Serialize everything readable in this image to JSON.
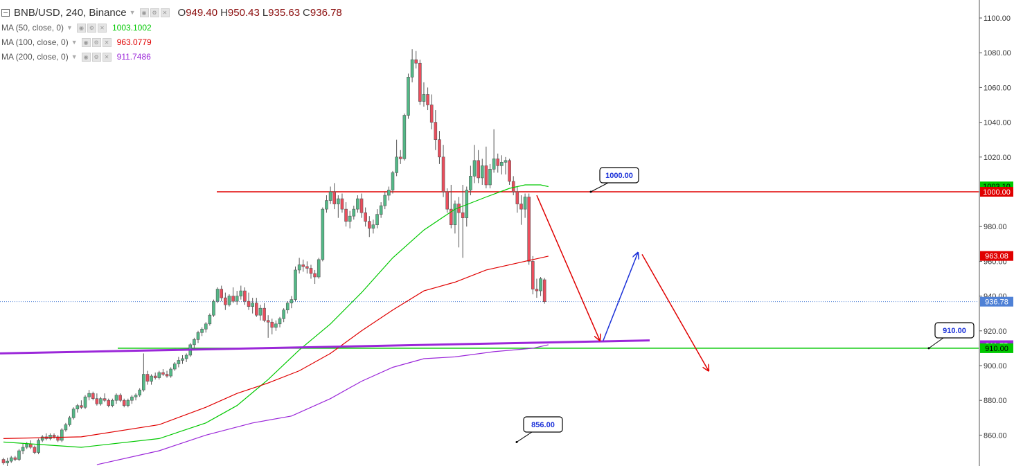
{
  "chart_header": {
    "symbol_line": "BNB/USD, 240, Binance",
    "ohlc": [
      {
        "label": "O",
        "value": "949.40"
      },
      {
        "label": "H",
        "value": "950.43"
      },
      {
        "label": "L",
        "value": "935.63"
      },
      {
        "label": "C",
        "value": "936.78"
      }
    ]
  },
  "indicators": [
    {
      "label": "MA (50, close, 0)",
      "value": "1003.1002",
      "color": "#00c800"
    },
    {
      "label": "MA (100, close, 0)",
      "value": "963.0779",
      "color": "#e00000"
    },
    {
      "label": "MA (200, close, 0)",
      "value": "911.7486",
      "color": "#9b27d9"
    }
  ],
  "chart_data": {
    "type": "candlestick",
    "ylim": [
      841,
      1106
    ],
    "y_ticks": [
      "860.00",
      "880.00",
      "900.00",
      "920.00",
      "940.00",
      "960.00",
      "980.00",
      "1000.00",
      "1020.00",
      "1040.00",
      "1060.00",
      "1080.00",
      "1100.00"
    ],
    "colors": {
      "up": "#53b987",
      "down": "#eb4d5c"
    },
    "candles": [
      [
        846,
        847,
        843,
        844
      ],
      [
        844,
        847,
        842,
        845
      ],
      [
        845,
        848,
        844,
        847
      ],
      [
        847,
        848,
        845,
        846
      ],
      [
        846,
        852,
        845,
        851
      ],
      [
        851,
        855,
        849,
        853
      ],
      [
        853,
        856,
        852,
        855
      ],
      [
        855,
        857,
        852,
        853
      ],
      [
        853,
        854,
        849,
        850
      ],
      [
        850,
        858,
        849,
        857
      ],
      [
        857,
        860,
        856,
        859
      ],
      [
        859,
        861,
        857,
        858
      ],
      [
        858,
        861,
        857,
        860
      ],
      [
        860,
        861,
        858,
        859
      ],
      [
        859,
        860,
        856,
        857
      ],
      [
        857,
        864,
        856,
        863
      ],
      [
        863,
        867,
        862,
        866
      ],
      [
        866,
        871,
        865,
        870
      ],
      [
        870,
        876,
        869,
        875
      ],
      [
        875,
        878,
        873,
        877
      ],
      [
        877,
        880,
        875,
        876
      ],
      [
        876,
        883,
        875,
        882
      ],
      [
        882,
        886,
        880,
        884
      ],
      [
        884,
        885,
        880,
        881
      ],
      [
        881,
        884,
        877,
        878
      ],
      [
        878,
        882,
        877,
        881
      ],
      [
        881,
        884,
        879,
        880
      ],
      [
        880,
        881,
        876,
        877
      ],
      [
        877,
        881,
        876,
        880
      ],
      [
        880,
        884,
        878,
        883
      ],
      [
        883,
        884,
        879,
        880
      ],
      [
        880,
        881,
        876,
        877
      ],
      [
        877,
        881,
        876,
        880
      ],
      [
        880,
        883,
        878,
        882
      ],
      [
        882,
        884,
        880,
        883
      ],
      [
        883,
        887,
        882,
        886
      ],
      [
        886,
        907,
        885,
        895
      ],
      [
        895,
        897,
        889,
        891
      ],
      [
        891,
        895,
        889,
        894
      ],
      [
        894,
        896,
        892,
        893
      ],
      [
        893,
        897,
        892,
        896
      ],
      [
        896,
        898,
        894,
        895
      ],
      [
        895,
        897,
        893,
        894
      ],
      [
        894,
        899,
        893,
        898
      ],
      [
        898,
        902,
        897,
        901
      ],
      [
        901,
        905,
        899,
        903
      ],
      [
        903,
        906,
        901,
        904
      ],
      [
        904,
        907,
        902,
        906
      ],
      [
        906,
        913,
        905,
        912
      ],
      [
        912,
        916,
        910,
        915
      ],
      [
        915,
        920,
        913,
        919
      ],
      [
        919,
        922,
        917,
        921
      ],
      [
        921,
        925,
        919,
        924
      ],
      [
        924,
        930,
        923,
        929
      ],
      [
        929,
        938,
        928,
        937
      ],
      [
        937,
        945,
        936,
        944
      ],
      [
        944,
        946,
        937,
        939
      ],
      [
        939,
        942,
        932,
        935
      ],
      [
        935,
        941,
        934,
        940
      ],
      [
        940,
        945,
        936,
        937
      ],
      [
        937,
        943,
        935,
        940
      ],
      [
        940,
        946,
        938,
        943
      ],
      [
        943,
        945,
        935,
        937
      ],
      [
        937,
        942,
        932,
        934
      ],
      [
        934,
        939,
        930,
        936
      ],
      [
        936,
        939,
        928,
        929
      ],
      [
        929,
        935,
        926,
        933
      ],
      [
        933,
        936,
        925,
        926
      ],
      [
        926,
        929,
        916,
        925
      ],
      [
        925,
        927,
        918,
        922
      ],
      [
        922,
        926,
        920,
        924
      ],
      [
        924,
        928,
        922,
        927
      ],
      [
        927,
        933,
        925,
        932
      ],
      [
        932,
        937,
        930,
        936
      ],
      [
        936,
        940,
        933,
        938
      ],
      [
        938,
        957,
        937,
        955
      ],
      [
        955,
        962,
        953,
        958
      ],
      [
        958,
        961,
        954,
        957
      ],
      [
        957,
        960,
        953,
        956
      ],
      [
        956,
        958,
        950,
        953
      ],
      [
        953,
        955,
        947,
        951
      ],
      [
        951,
        962,
        950,
        961
      ],
      [
        961,
        991,
        960,
        990
      ],
      [
        990,
        998,
        988,
        995
      ],
      [
        995,
        1003,
        993,
        1000
      ],
      [
        1000,
        1005,
        990,
        993
      ],
      [
        993,
        998,
        985,
        996
      ],
      [
        996,
        999,
        988,
        990
      ],
      [
        990,
        994,
        980,
        983
      ],
      [
        983,
        989,
        979,
        986
      ],
      [
        986,
        992,
        984,
        990
      ],
      [
        990,
        998,
        988,
        996
      ],
      [
        996,
        999,
        985,
        988
      ],
      [
        988,
        991,
        980,
        983
      ],
      [
        983,
        986,
        974,
        979
      ],
      [
        979,
        984,
        976,
        981
      ],
      [
        981,
        990,
        979,
        987
      ],
      [
        987,
        994,
        985,
        992
      ],
      [
        992,
        1000,
        990,
        998
      ],
      [
        998,
        1003,
        995,
        1001
      ],
      [
        1001,
        1012,
        999,
        1011
      ],
      [
        1011,
        1030,
        1009,
        1020
      ],
      [
        1020,
        1024,
        1016,
        1019
      ],
      [
        1019,
        1045,
        1018,
        1044
      ],
      [
        1044,
        1068,
        1042,
        1066
      ],
      [
        1066,
        1082,
        1063,
        1076
      ],
      [
        1076,
        1081,
        1071,
        1074
      ],
      [
        1074,
        1076,
        1050,
        1052
      ],
      [
        1052,
        1063,
        1049,
        1056
      ],
      [
        1056,
        1060,
        1047,
        1050
      ],
      [
        1050,
        1056,
        1036,
        1040
      ],
      [
        1040,
        1047,
        1024,
        1030
      ],
      [
        1030,
        1035,
        1016,
        1020
      ],
      [
        1020,
        1027,
        997,
        1000
      ],
      [
        1000,
        1002,
        988,
        990
      ],
      [
        990,
        1004,
        979,
        981
      ],
      [
        981,
        995,
        976,
        993
      ],
      [
        993,
        997,
        968,
        988
      ],
      [
        988,
        1004,
        962,
        985
      ],
      [
        985,
        1003,
        980,
        1001
      ],
      [
        1001,
        1015,
        998,
        1009
      ],
      [
        1009,
        1027,
        1005,
        1018
      ],
      [
        1018,
        1024,
        1005,
        1008
      ],
      [
        1008,
        1019,
        1004,
        1015
      ],
      [
        1015,
        1026,
        1002,
        1004
      ],
      [
        1004,
        1016,
        1002,
        1013
      ],
      [
        1013,
        1036,
        1011,
        1019
      ],
      [
        1019,
        1022,
        1011,
        1015
      ],
      [
        1015,
        1021,
        1010,
        1017
      ],
      [
        1017,
        1020,
        1010,
        1018
      ],
      [
        1018,
        1019,
        1004,
        1006
      ],
      [
        1006,
        1009,
        998,
        1000
      ],
      [
        1000,
        1003,
        988,
        993
      ],
      [
        993,
        998,
        981,
        990
      ],
      [
        990,
        999,
        985,
        997
      ],
      [
        997,
        999,
        958,
        960
      ],
      [
        960,
        963,
        941,
        944
      ],
      [
        944,
        950,
        939,
        943
      ],
      [
        943,
        951,
        940,
        950
      ],
      [
        949.4,
        950.43,
        935.63,
        936.78
      ]
    ],
    "series": [
      {
        "name": "MA (50, close, 0)",
        "color": "#00c800",
        "values": [
          [
            0,
            856
          ],
          [
            20,
            853
          ],
          [
            40,
            858
          ],
          [
            52,
            867
          ],
          [
            60,
            877
          ],
          [
            68,
            892
          ],
          [
            76,
            909
          ],
          [
            84,
            924
          ],
          [
            92,
            942
          ],
          [
            100,
            962
          ],
          [
            108,
            978
          ],
          [
            116,
            990
          ],
          [
            124,
            997
          ],
          [
            130,
            1002
          ],
          [
            134,
            1004
          ],
          [
            138,
            1004
          ],
          [
            140,
            1003
          ]
        ]
      },
      {
        "name": "MA (100, close, 0)",
        "color": "#e00000",
        "values": [
          [
            0,
            858
          ],
          [
            20,
            859
          ],
          [
            40,
            866
          ],
          [
            52,
            876
          ],
          [
            60,
            884
          ],
          [
            68,
            890
          ],
          [
            76,
            897
          ],
          [
            84,
            907
          ],
          [
            92,
            920
          ],
          [
            100,
            932
          ],
          [
            108,
            943
          ],
          [
            116,
            948
          ],
          [
            124,
            955
          ],
          [
            130,
            958
          ],
          [
            136,
            961
          ],
          [
            140,
            963
          ]
        ]
      },
      {
        "name": "MA (200, close, 0)",
        "color": "#9b27d9",
        "values": [
          [
            24,
            843
          ],
          [
            40,
            851
          ],
          [
            52,
            860
          ],
          [
            64,
            867
          ],
          [
            74,
            871
          ],
          [
            84,
            881
          ],
          [
            92,
            891
          ],
          [
            100,
            899
          ],
          [
            108,
            904
          ],
          [
            116,
            905
          ],
          [
            126,
            908
          ],
          [
            136,
            910
          ],
          [
            140,
            912
          ]
        ]
      }
    ],
    "price_labels": [
      {
        "text": "1003.10",
        "value": 1003.1,
        "bg": "#00c800",
        "fg": "#000000"
      },
      {
        "text": "1000.00",
        "value": 1000.0,
        "bg": "#e00000",
        "fg": "#ffffff"
      },
      {
        "text": "963.08",
        "value": 963.08,
        "bg": "#e00000",
        "fg": "#ffffff"
      },
      {
        "text": "936.78",
        "value": 936.78,
        "bg": "#4f81d6",
        "fg": "#ffffff"
      },
      {
        "text": "911.75",
        "value": 911.75,
        "bg": "#9b27d9",
        "fg": "#ffffff"
      },
      {
        "text": "910.00",
        "value": 910.0,
        "bg": "#00c800",
        "fg": "#000000"
      }
    ],
    "annotations": [
      {
        "type": "hline",
        "value": 1000,
        "color": "#e00000"
      },
      {
        "type": "hline",
        "value": 910,
        "color": "#00c800"
      },
      {
        "type": "hline",
        "value": 936.78,
        "color": "#4f81d6",
        "dashed": true
      },
      {
        "type": "callout",
        "text": "1000.00",
        "value": 1000
      },
      {
        "type": "callout",
        "text": "910.00",
        "value": 910
      },
      {
        "type": "callout",
        "text": "856.00",
        "value": 856
      },
      {
        "type": "trendline",
        "color": "#9b27d9"
      },
      {
        "type": "arrow",
        "color": "#e00000"
      },
      {
        "type": "arrow",
        "color": "#1a30d8"
      },
      {
        "type": "arrow",
        "color": "#e00000"
      }
    ]
  }
}
